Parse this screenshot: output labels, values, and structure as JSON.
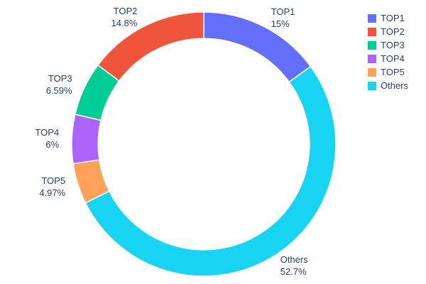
{
  "chart_data": {
    "type": "pie",
    "subtype": "donut",
    "hole": 0.8,
    "labels": [
      "TOP1",
      "TOP2",
      "TOP3",
      "TOP4",
      "TOP5",
      "Others"
    ],
    "values": [
      15,
      14.8,
      6.59,
      6,
      4.97,
      52.7
    ],
    "display_percents": [
      "15%",
      "14.8%",
      "6.59%",
      "6%",
      "4.97%",
      "52.7%"
    ],
    "colors": [
      "#636EFA",
      "#EF553B",
      "#00CC96",
      "#AB63FA",
      "#FFA15A",
      "#19D3F3"
    ],
    "clockwise_draw_order": [
      0,
      5,
      4,
      3,
      2,
      1
    ],
    "start_angle_deg": 0,
    "title": "",
    "legend_position": "right",
    "legend_entries": [
      "TOP1",
      "TOP2",
      "TOP3",
      "TOP4",
      "TOP5",
      "Others"
    ],
    "label_text_color": "#2a3f5f",
    "background_color": "#ffffff"
  }
}
